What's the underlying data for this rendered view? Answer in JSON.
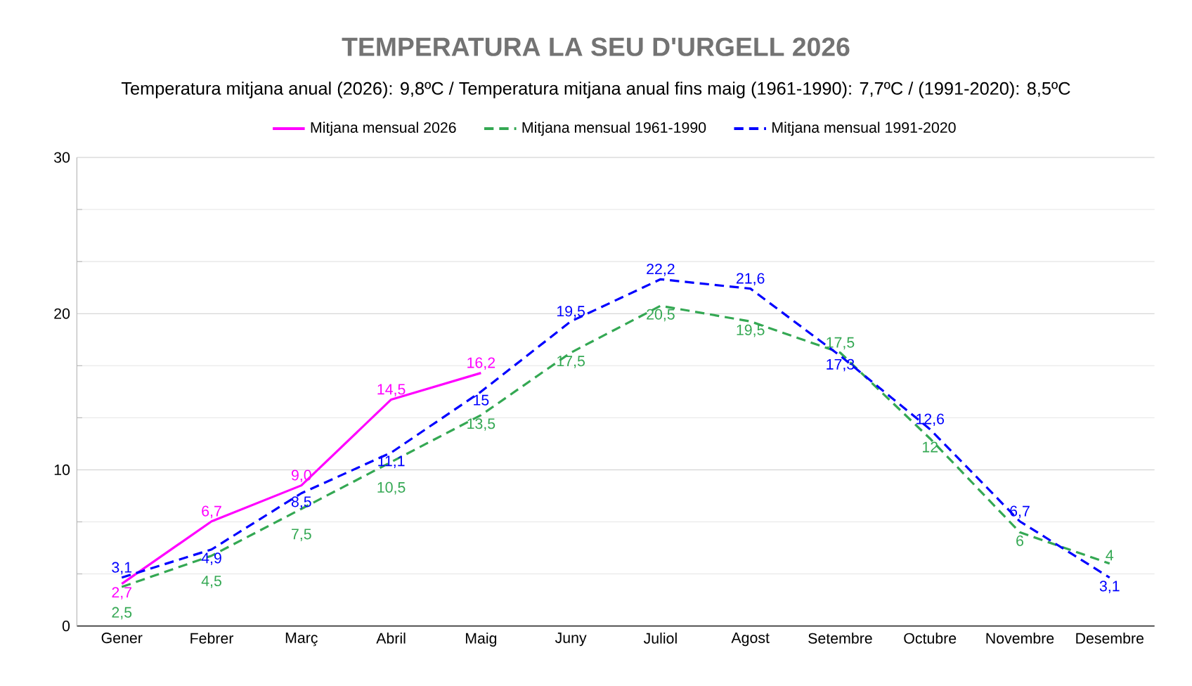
{
  "chart_data": {
    "type": "line",
    "title": "TEMPERATURA LA SEU D'URGELL 2026",
    "subtitle": "Temperatura mitjana anual (2026): 9,8ºC / Temperatura mitjana anual fins maig (1961-1990): 7,7ºC / (1991-2020): 8,5ºC",
    "categories": [
      "Gener",
      "Febrer",
      "Març",
      "Abril",
      "Maig",
      "Juny",
      "Juliol",
      "Agost",
      "Setembre",
      "Octubre",
      "Novembre",
      "Desembre"
    ],
    "series": [
      {
        "name": "Mitjana mensual 2026",
        "color": "#ff00ff",
        "line_style": "solid",
        "values": [
          2.7,
          6.7,
          9.0,
          14.5,
          16.2,
          null,
          null,
          null,
          null,
          null,
          null,
          null
        ],
        "value_labels": [
          "2,7",
          "6,7",
          "9,0",
          "14,5",
          "16,2",
          null,
          null,
          null,
          null,
          null,
          null,
          null
        ]
      },
      {
        "name": "Mitjana mensual 1961-1990",
        "color": "#34a853",
        "line_style": "dashed",
        "values": [
          2.5,
          4.5,
          7.5,
          10.5,
          13.5,
          17.5,
          20.5,
          19.5,
          17.5,
          12,
          6,
          4
        ],
        "value_labels": [
          "2,5",
          "4,5",
          "7,5",
          "10,5",
          "13,5",
          "17,5",
          "20,5",
          "19,5",
          "17,5",
          "12",
          "6",
          "4"
        ]
      },
      {
        "name": "Mitjana mensual 1991-2020",
        "color": "#0000ff",
        "line_style": "dashed",
        "values": [
          3.1,
          4.9,
          8.5,
          11.1,
          15,
          19.5,
          22.2,
          21.6,
          17.3,
          12.6,
          6.7,
          3.1
        ],
        "value_labels": [
          "3,1",
          "4,9",
          "8,5",
          "11,1",
          "15",
          "19,5",
          "22,2",
          "21,6",
          "17,3",
          "12,6",
          "6,7",
          "3,1"
        ]
      }
    ],
    "ylim": [
      0,
      30
    ],
    "yticks": [
      0,
      10,
      20,
      30
    ],
    "grid": "y",
    "legend": "top",
    "marker": "none"
  }
}
